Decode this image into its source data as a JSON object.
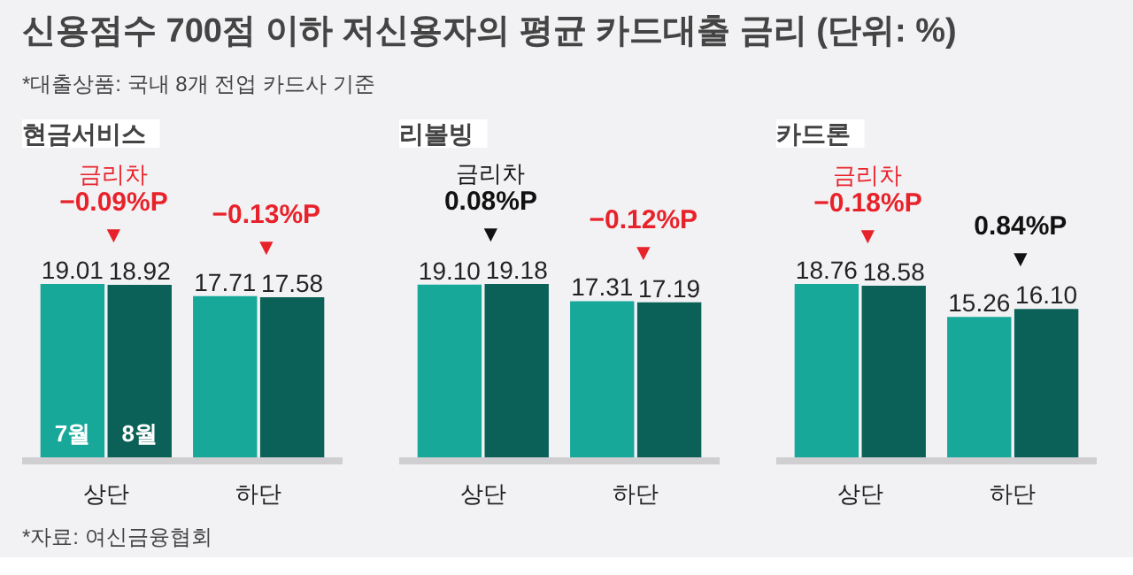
{
  "chart_data": [
    {
      "type": "other",
      "title": "신용점수 700점 이하 저신용자의 평균 카드대출 금리 (단위: %)",
      "subtitle": "*대출상품: 국내 8개 전업 카드사 기준"
    },
    {
      "type": "bar",
      "title": "현금서비스",
      "categories": [
        "상단",
        "하단"
      ],
      "tick_labels": "x",
      "series": [
        {
          "name": "7월",
          "color": "#17a89a",
          "values": [
            19.01,
            17.71
          ],
          "value_labels": [
            "19.01",
            "17.71"
          ]
        },
        {
          "name": "8월",
          "color": "#0b6157",
          "values": [
            18.92,
            17.58
          ],
          "value_labels": [
            "18.92",
            "17.58"
          ]
        }
      ],
      "annotations": [
        {
          "text": "금리차\n−0.09%P\n▼",
          "x": "상단",
          "y": 18.92
        },
        {
          "text": "−0.13%P\n▼",
          "x": "하단",
          "y": 17.58
        },
        "*자료: 여신금융협회"
      ]
    },
    {
      "type": "bar",
      "title": "리볼빙",
      "categories": [
        "상단",
        "하단"
      ],
      "tick_labels": "x",
      "series": [
        {
          "color": "#17a89a",
          "values": [
            19.1,
            17.31
          ],
          "value_labels": [
            "19.10",
            "17.31"
          ]
        },
        {
          "color": "#0b6157",
          "values": [
            19.18,
            17.19
          ],
          "value_labels": [
            "19.18",
            "17.19"
          ]
        }
      ],
      "annotations": [
        {
          "text": "금리차\n0.08%P\n▼",
          "x": "상단",
          "y": 19.18
        },
        {
          "text": "−0.12%P\n▼",
          "x": "하단",
          "y": 17.19
        }
      ]
    },
    {
      "type": "bar",
      "title": "카드론",
      "categories": [
        "상단",
        "하단"
      ],
      "tick_labels": "x",
      "series": [
        {
          "color": "#17a89a",
          "values": [
            18.76,
            15.26
          ],
          "value_labels": [
            "18.76",
            "15.26"
          ]
        },
        {
          "color": "#0b6157",
          "values": [
            18.58,
            16.1
          ],
          "value_labels": [
            "18.58",
            "16.10"
          ]
        }
      ],
      "annotations": [
        {
          "text": "금리차\n−0.18%P\n▼",
          "x": "상단",
          "y": 18.58
        },
        {
          "text": "0.84%P\n▼",
          "x": "하단",
          "y": 16.1
        }
      ]
    }
  ]
}
